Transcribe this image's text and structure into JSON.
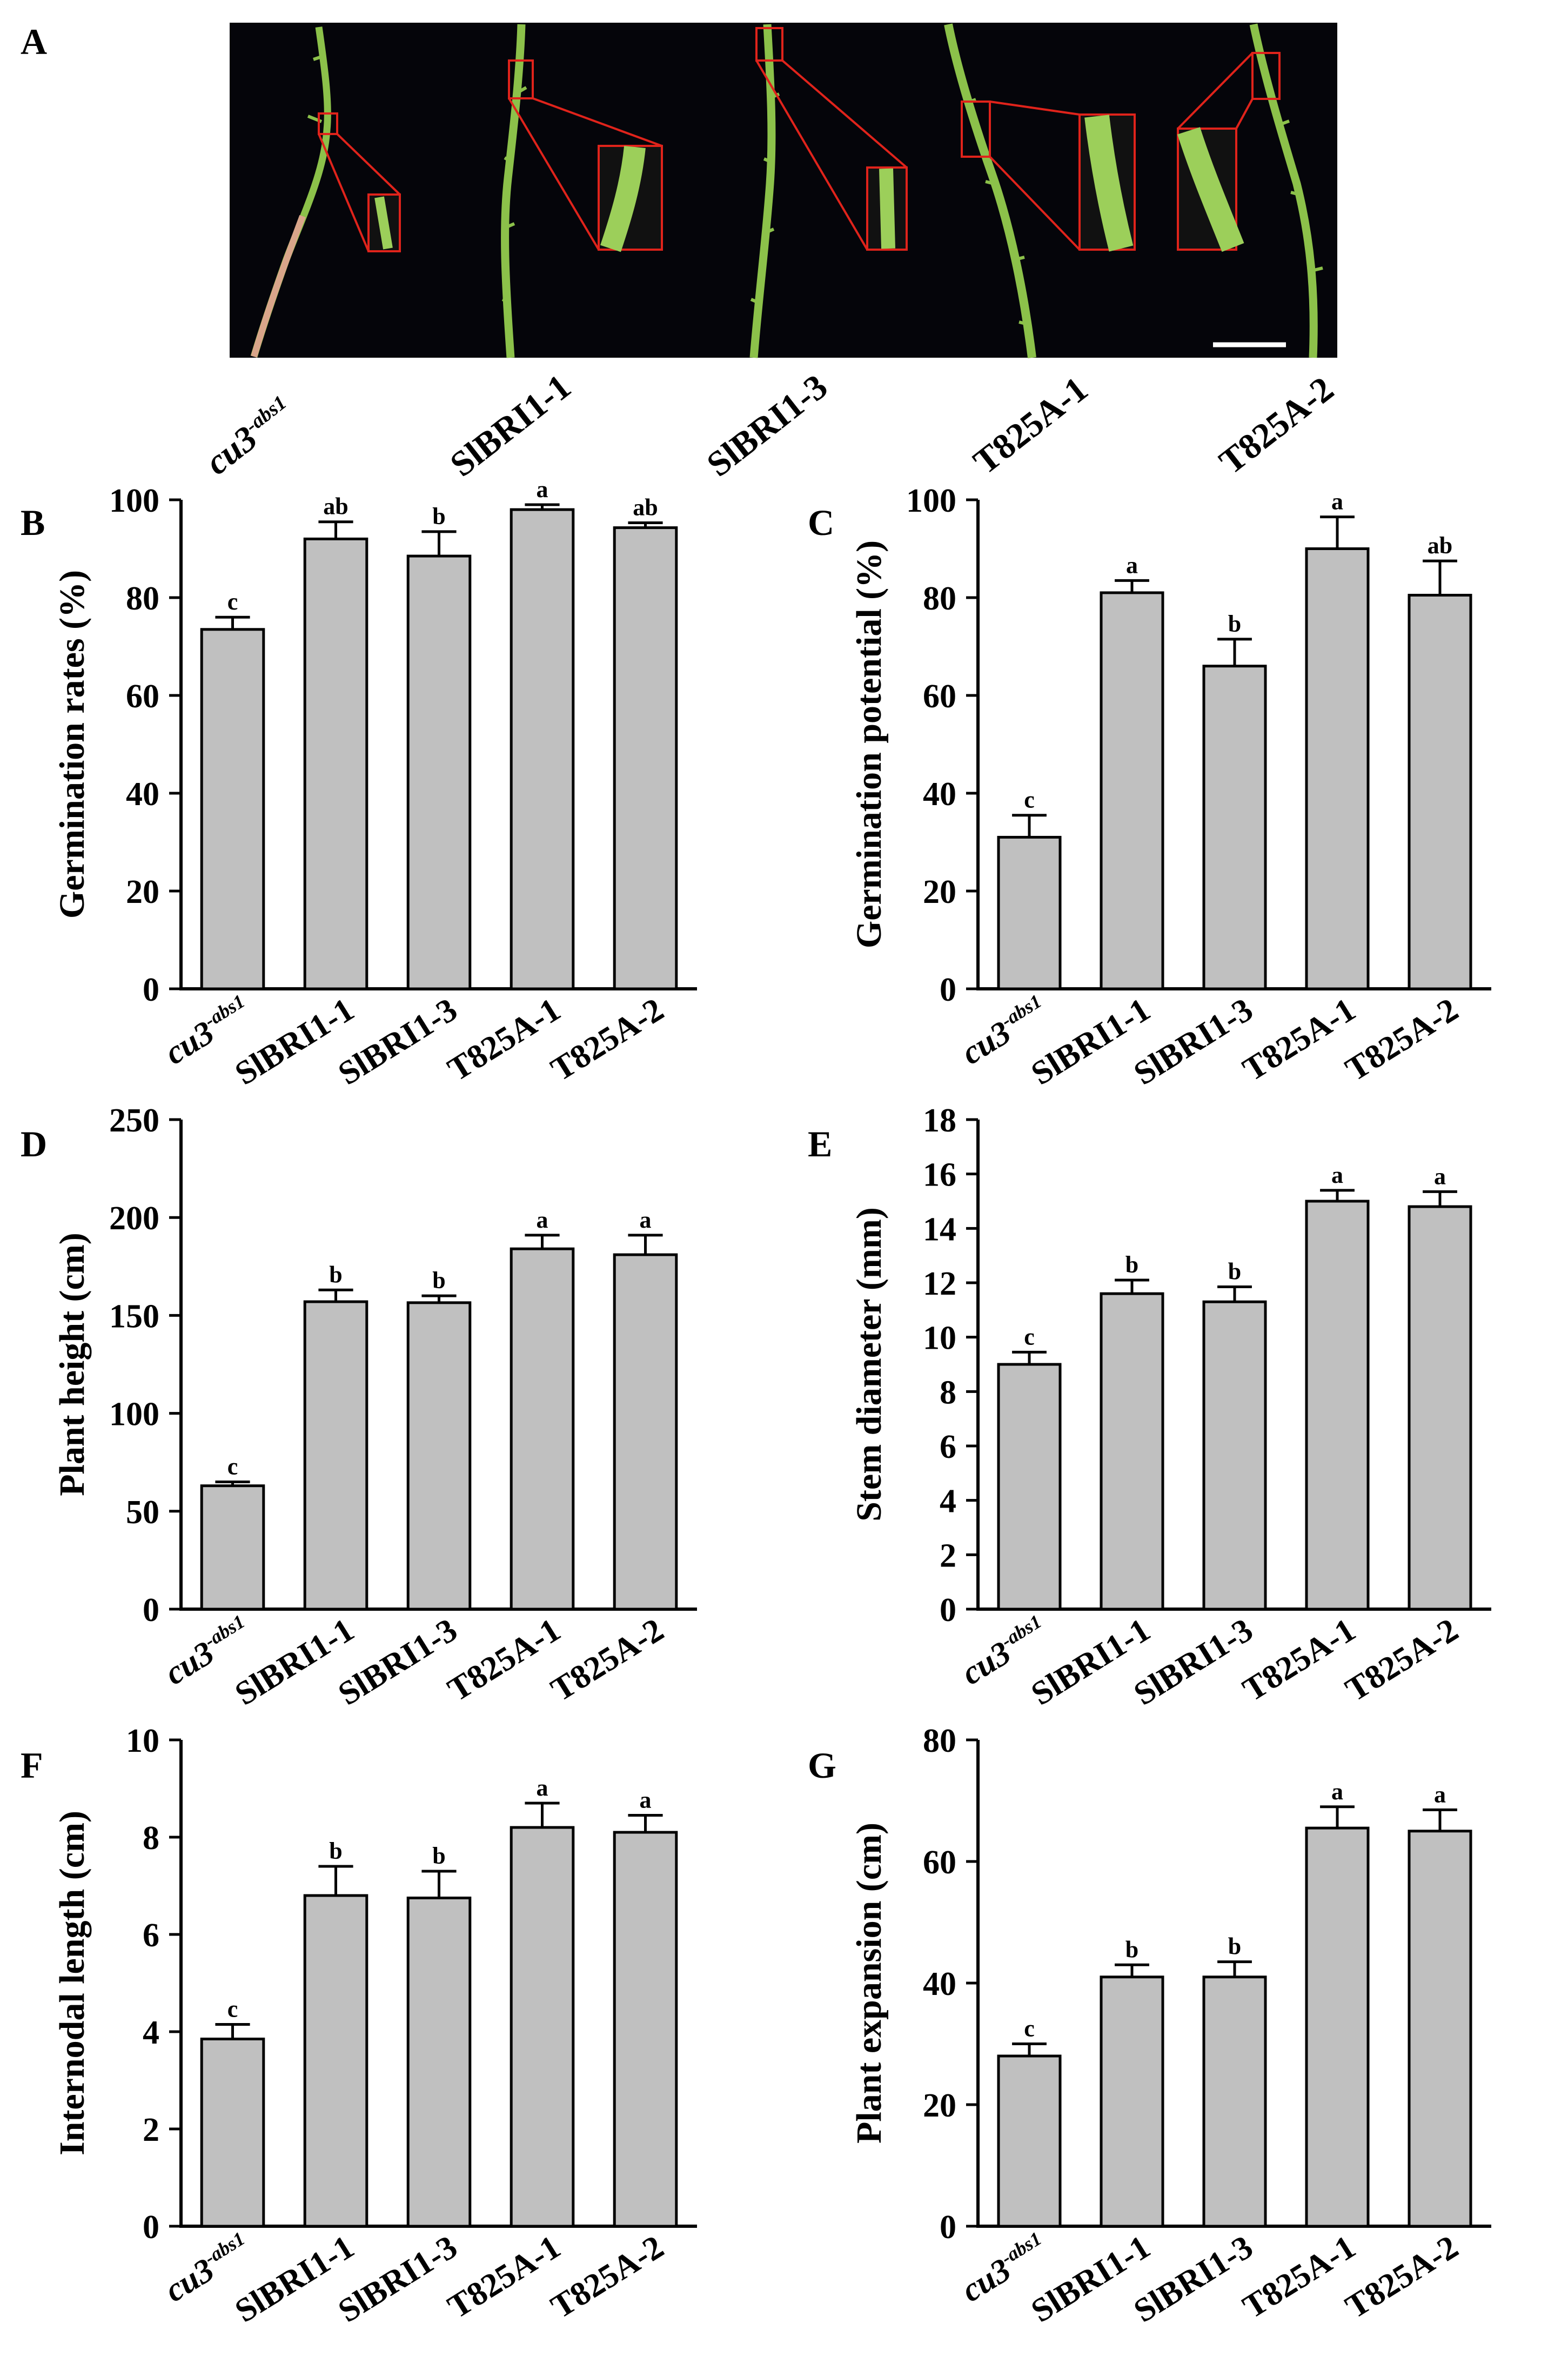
{
  "figure": {
    "panel_a": {
      "letter": "A",
      "genotype_labels": [
        {
          "main": "cu3",
          "sup": "-abs1",
          "italic": true
        },
        {
          "main": "SlBRI1-1",
          "sup": "",
          "italic": false
        },
        {
          "main": "SlBRI1-3",
          "sup": "",
          "italic": false
        },
        {
          "main": "T825A-1",
          "sup": "",
          "italic": false
        },
        {
          "main": "T825A-2",
          "sup": "",
          "italic": false
        }
      ]
    },
    "colors": {
      "bar": "#c0c0c0",
      "stem": "#8cc14a",
      "photo_bg": "#05050a",
      "inset_border": "#e0231b",
      "scalebar": "#ffffff"
    }
  },
  "chart_data": [
    {
      "panel": "B",
      "type": "bar",
      "ylabel": "Germination rates (%)",
      "ylim": [
        0,
        100
      ],
      "yticks": [
        0,
        20,
        40,
        60,
        80,
        100
      ],
      "categories": [
        {
          "main": "cu3",
          "sup": "-abs1",
          "italic": true
        },
        {
          "main": "SlBRI1-1",
          "sup": "",
          "italic": false
        },
        {
          "main": "SlBRI1-3",
          "sup": "",
          "italic": false
        },
        {
          "main": "T825A-1",
          "sup": "",
          "italic": false
        },
        {
          "main": "T825A-2",
          "sup": "",
          "italic": false
        }
      ],
      "values": [
        73.5,
        92,
        88.5,
        98,
        94.3
      ],
      "errors": [
        2.5,
        3.5,
        5,
        1,
        1
      ],
      "significance": [
        "c",
        "ab",
        "b",
        "a",
        "ab"
      ]
    },
    {
      "panel": "C",
      "type": "bar",
      "ylabel": "Germination potential (%)",
      "ylim": [
        0,
        100
      ],
      "yticks": [
        0,
        20,
        40,
        60,
        80,
        100
      ],
      "categories": [
        {
          "main": "cu3",
          "sup": "-abs1",
          "italic": true
        },
        {
          "main": "SlBRI1-1",
          "sup": "",
          "italic": false
        },
        {
          "main": "SlBRI1-3",
          "sup": "",
          "italic": false
        },
        {
          "main": "T825A-1",
          "sup": "",
          "italic": false
        },
        {
          "main": "T825A-2",
          "sup": "",
          "italic": false
        }
      ],
      "values": [
        31,
        81,
        66,
        90,
        80.5
      ],
      "errors": [
        4.5,
        2.5,
        5.5,
        6.5,
        7
      ],
      "significance": [
        "c",
        "a",
        "b",
        "a",
        "ab"
      ]
    },
    {
      "panel": "D",
      "type": "bar",
      "ylabel": "Plant height (cm)",
      "ylim": [
        0,
        250
      ],
      "yticks": [
        0,
        50,
        100,
        150,
        200,
        250
      ],
      "categories": [
        {
          "main": "cu3",
          "sup": "-abs1",
          "italic": true
        },
        {
          "main": "SlBRI1-1",
          "sup": "",
          "italic": false
        },
        {
          "main": "SlBRI1-3",
          "sup": "",
          "italic": false
        },
        {
          "main": "T825A-1",
          "sup": "",
          "italic": false
        },
        {
          "main": "T825A-2",
          "sup": "",
          "italic": false
        }
      ],
      "values": [
        63,
        157,
        156.5,
        184,
        181
      ],
      "errors": [
        2,
        6,
        3.5,
        7,
        10
      ],
      "significance": [
        "c",
        "b",
        "b",
        "a",
        "a"
      ]
    },
    {
      "panel": "E",
      "type": "bar",
      "ylabel": "Stem diameter (mm)",
      "ylim": [
        0,
        18
      ],
      "yticks": [
        0,
        2,
        4,
        6,
        8,
        10,
        12,
        14,
        16,
        18
      ],
      "categories": [
        {
          "main": "cu3",
          "sup": "-abs1",
          "italic": true
        },
        {
          "main": "SlBRI1-1",
          "sup": "",
          "italic": false
        },
        {
          "main": "SlBRI1-3",
          "sup": "",
          "italic": false
        },
        {
          "main": "T825A-1",
          "sup": "",
          "italic": false
        },
        {
          "main": "T825A-2",
          "sup": "",
          "italic": false
        }
      ],
      "values": [
        9,
        11.6,
        11.3,
        15,
        14.8
      ],
      "errors": [
        0.45,
        0.5,
        0.55,
        0.4,
        0.55
      ],
      "significance": [
        "c",
        "b",
        "b",
        "a",
        "a"
      ]
    },
    {
      "panel": "F",
      "type": "bar",
      "ylabel": "Internodal length (cm)",
      "ylim": [
        0,
        10
      ],
      "yticks": [
        0,
        2,
        4,
        6,
        8,
        10
      ],
      "categories": [
        {
          "main": "cu3",
          "sup": "-abs1",
          "italic": true
        },
        {
          "main": "SlBRI1-1",
          "sup": "",
          "italic": false
        },
        {
          "main": "SlBRI1-3",
          "sup": "",
          "italic": false
        },
        {
          "main": "T825A-1",
          "sup": "",
          "italic": false
        },
        {
          "main": "T825A-2",
          "sup": "",
          "italic": false
        }
      ],
      "values": [
        3.85,
        6.8,
        6.75,
        8.2,
        8.1
      ],
      "errors": [
        0.3,
        0.6,
        0.55,
        0.5,
        0.35
      ],
      "significance": [
        "c",
        "b",
        "b",
        "a",
        "a"
      ]
    },
    {
      "panel": "G",
      "type": "bar",
      "ylabel": "Plant expansion (cm)",
      "ylim": [
        0,
        80
      ],
      "yticks": [
        0,
        20,
        40,
        60,
        80
      ],
      "categories": [
        {
          "main": "cu3",
          "sup": "-abs1",
          "italic": true
        },
        {
          "main": "SlBRI1-1",
          "sup": "",
          "italic": false
        },
        {
          "main": "SlBRI1-3",
          "sup": "",
          "italic": false
        },
        {
          "main": "T825A-1",
          "sup": "",
          "italic": false
        },
        {
          "main": "T825A-2",
          "sup": "",
          "italic": false
        }
      ],
      "values": [
        28,
        41,
        41,
        65.5,
        65
      ],
      "errors": [
        2,
        2,
        2.5,
        3.5,
        3.5
      ],
      "significance": [
        "c",
        "b",
        "b",
        "a",
        "a"
      ]
    }
  ]
}
